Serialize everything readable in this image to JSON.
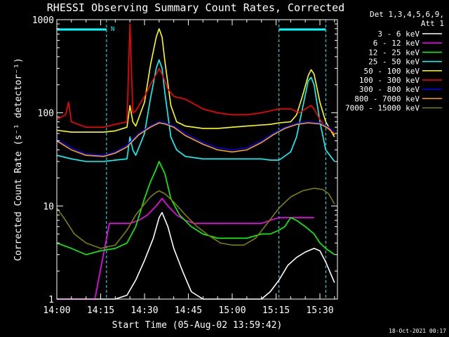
{
  "chart_data": {
    "type": "line",
    "title": "RHESSI Observing Summary Count Rates, Corrected",
    "xlabel": "Start Time (05-Aug-02 13:59:42)",
    "ylabel": "Corrected Count Rate (s⁻¹ detector⁻¹)",
    "yscale": "log",
    "ylim": [
      1,
      1000
    ],
    "xlim_minutes": [
      0,
      96
    ],
    "x_tick_labels": [
      "14:00",
      "14:15",
      "14:30",
      "14:45",
      "15:00",
      "15:15",
      "15:30"
    ],
    "y_tick_labels": [
      "1",
      "10",
      "100",
      "1000"
    ],
    "legend_header": [
      "Det 1,3,4,5,6,9,",
      "Att 1"
    ],
    "legend_placement": "top-right",
    "footer_date": "18-Oct-2021 00:17",
    "night_marker": "N",
    "night_intervals_minutes": [
      [
        0,
        17
      ],
      [
        76,
        92
      ]
    ],
    "series": [
      {
        "name": "3 - 6 keV",
        "color": "#ffffff",
        "x": [
          0,
          17,
          20,
          24,
          27,
          30,
          33,
          35,
          36,
          38,
          40,
          43,
          46,
          50,
          55,
          60,
          65,
          70,
          73,
          76,
          79,
          82,
          85,
          88,
          90,
          92,
          95
        ],
        "y": [
          1,
          1,
          1,
          1.1,
          1.6,
          2.6,
          4.5,
          7.5,
          8.5,
          6,
          3.5,
          2,
          1.2,
          1,
          1,
          1,
          1,
          1,
          1.2,
          1.6,
          2.3,
          2.8,
          3.2,
          3.5,
          3.3,
          2.5,
          1.5
        ]
      },
      {
        "name": "6 - 12 keV",
        "color": "#ff00ff",
        "x": [
          0,
          13,
          18,
          22,
          25,
          28,
          31,
          34,
          36,
          38,
          41,
          44,
          47,
          50,
          55,
          60,
          65,
          70,
          73,
          76,
          79,
          82,
          85,
          88
        ],
        "y": [
          1,
          1,
          6.5,
          6.5,
          6.5,
          7,
          8,
          10,
          12,
          10,
          8,
          7,
          6.5,
          6.5,
          6.5,
          6.5,
          6.5,
          6.5,
          7,
          7.5,
          7.5,
          7.5,
          7.5,
          7.5
        ]
      },
      {
        "name": "12 - 25 keV",
        "color": "#00ff00",
        "x": [
          0,
          5,
          10,
          15,
          20,
          24,
          27,
          30,
          32,
          34,
          35,
          37,
          39,
          42,
          46,
          50,
          55,
          60,
          65,
          70,
          73,
          76,
          78,
          80,
          82,
          85,
          88,
          90,
          92,
          95
        ],
        "y": [
          4,
          3.5,
          3,
          3.3,
          3.5,
          4,
          6,
          12,
          18,
          25,
          30,
          22,
          12,
          8,
          6,
          5,
          4.5,
          4.5,
          4.5,
          5,
          5,
          5.5,
          6,
          7.5,
          7,
          6,
          5,
          4,
          3.5,
          3
        ]
      },
      {
        "name": "25 - 50 keV",
        "color": "#00ffff",
        "x": [
          0,
          5,
          10,
          16,
          20,
          24,
          25,
          26,
          27,
          30,
          32,
          34,
          35,
          36,
          37,
          39,
          41,
          44,
          50,
          55,
          60,
          65,
          70,
          73,
          76,
          80,
          82,
          84,
          86,
          87,
          88,
          90,
          92,
          95
        ],
        "y": [
          35,
          32,
          30,
          30,
          31,
          32,
          55,
          40,
          35,
          60,
          140,
          300,
          370,
          300,
          160,
          55,
          40,
          34,
          32,
          32,
          32,
          32,
          32,
          31,
          31,
          38,
          55,
          110,
          220,
          240,
          200,
          80,
          40,
          30
        ]
      },
      {
        "name": "50 - 100 keV",
        "color": "#ffff00",
        "x": [
          0,
          5,
          10,
          16,
          20,
          24,
          25,
          26,
          27,
          30,
          32,
          34,
          35,
          36,
          37,
          39,
          41,
          44,
          50,
          55,
          60,
          65,
          70,
          73,
          76,
          80,
          82,
          84,
          86,
          87,
          88,
          90,
          92,
          95
        ],
        "y": [
          65,
          62,
          62,
          62,
          64,
          70,
          120,
          80,
          72,
          130,
          320,
          650,
          800,
          650,
          350,
          120,
          80,
          72,
          68,
          68,
          70,
          72,
          74,
          75,
          78,
          80,
          95,
          150,
          250,
          290,
          260,
          130,
          80,
          55
        ]
      },
      {
        "name": "100 - 300 keV",
        "color": "#ff0000",
        "x": [
          0,
          3,
          4,
          5,
          10,
          16,
          20,
          24,
          25,
          26,
          27,
          30,
          32,
          34,
          35,
          36,
          38,
          40,
          44,
          50,
          55,
          60,
          65,
          70,
          73,
          76,
          80,
          83,
          85,
          87,
          88,
          90,
          92,
          95
        ],
        "y": [
          85,
          95,
          130,
          80,
          70,
          70,
          75,
          80,
          900,
          100,
          105,
          150,
          200,
          260,
          300,
          260,
          180,
          150,
          140,
          110,
          100,
          95,
          95,
          100,
          105,
          110,
          110,
          100,
          110,
          120,
          110,
          85,
          70,
          60
        ]
      },
      {
        "name": "300 - 800 keV",
        "color": "#0000ff",
        "x": [
          0,
          5,
          10,
          16,
          20,
          24,
          28,
          32,
          35,
          37,
          40,
          44,
          50,
          55,
          60,
          65,
          70,
          74,
          78,
          82,
          86,
          90,
          93,
          95
        ],
        "y": [
          52,
          42,
          36,
          35,
          38,
          45,
          60,
          72,
          80,
          78,
          72,
          60,
          48,
          42,
          40,
          42,
          50,
          60,
          70,
          77,
          80,
          78,
          70,
          62
        ]
      },
      {
        "name": "800 - 7000 keV",
        "color": "#ffa500",
        "x": [
          0,
          5,
          10,
          16,
          20,
          24,
          28,
          32,
          35,
          37,
          40,
          44,
          50,
          55,
          60,
          65,
          70,
          74,
          78,
          82,
          86,
          90,
          93,
          95
        ],
        "y": [
          50,
          40,
          35,
          34,
          37,
          43,
          58,
          70,
          78,
          76,
          70,
          57,
          46,
          40,
          38,
          40,
          48,
          58,
          68,
          75,
          78,
          76,
          68,
          58
        ]
      },
      {
        "name": "7000 - 15000 keV",
        "color": "#808000",
        "x": [
          0,
          3,
          6,
          10,
          15,
          20,
          24,
          27,
          30,
          32,
          34,
          35,
          37,
          40,
          44,
          48,
          52,
          56,
          60,
          64,
          68,
          72,
          76,
          80,
          84,
          88,
          91,
          93,
          95
        ],
        "y": [
          9.5,
          7,
          5,
          4,
          3.5,
          3.8,
          5.5,
          8,
          10.5,
          12.5,
          14,
          14.5,
          13.5,
          11,
          8,
          6,
          4.8,
          4,
          3.8,
          3.8,
          4.5,
          6.5,
          9.5,
          12.5,
          14.5,
          15.5,
          15,
          13.5,
          10.5
        ]
      }
    ]
  }
}
